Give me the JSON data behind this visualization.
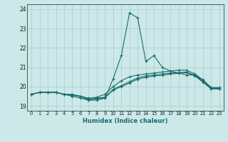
{
  "title": "",
  "xlabel": "Humidex (Indice chaleur)",
  "ylabel": "",
  "xlim": [
    -0.5,
    23.5
  ],
  "ylim": [
    18.75,
    24.25
  ],
  "yticks": [
    19,
    20,
    21,
    22,
    23,
    24
  ],
  "xticks": [
    0,
    1,
    2,
    3,
    4,
    5,
    6,
    7,
    8,
    9,
    10,
    11,
    12,
    13,
    14,
    15,
    16,
    17,
    18,
    19,
    20,
    21,
    22,
    23
  ],
  "background_color": "#cce8e8",
  "grid_color": "#aacccc",
  "line_color": "#1a6b6b",
  "curve1_x": [
    0,
    1,
    2,
    3,
    4,
    5,
    6,
    7,
    8,
    9,
    10,
    11,
    12,
    13,
    14,
    15,
    16,
    17,
    18,
    19,
    20,
    21,
    22,
    23
  ],
  "curve1_y": [
    19.6,
    19.7,
    19.7,
    19.7,
    19.6,
    19.5,
    19.4,
    19.3,
    19.3,
    19.4,
    20.4,
    21.6,
    23.8,
    23.55,
    21.3,
    21.6,
    21.0,
    20.8,
    20.7,
    20.6,
    20.6,
    20.3,
    19.9,
    19.9
  ],
  "curve2_x": [
    0,
    1,
    2,
    3,
    4,
    5,
    6,
    7,
    8,
    9,
    10,
    11,
    12,
    13,
    14,
    15,
    16,
    17,
    18,
    19,
    20,
    21,
    22,
    23
  ],
  "curve2_y": [
    19.6,
    19.7,
    19.7,
    19.7,
    19.6,
    19.6,
    19.5,
    19.4,
    19.45,
    19.6,
    20.0,
    20.3,
    20.5,
    20.6,
    20.65,
    20.7,
    20.75,
    20.8,
    20.85,
    20.85,
    20.65,
    20.35,
    19.95,
    19.95
  ],
  "curve3_x": [
    0,
    1,
    2,
    3,
    4,
    5,
    6,
    7,
    8,
    9,
    10,
    11,
    12,
    13,
    14,
    15,
    16,
    17,
    18,
    19,
    20,
    21,
    22,
    23
  ],
  "curve3_y": [
    19.6,
    19.7,
    19.7,
    19.7,
    19.6,
    19.55,
    19.5,
    19.35,
    19.4,
    19.45,
    19.85,
    20.05,
    20.25,
    20.45,
    20.55,
    20.6,
    20.65,
    20.7,
    20.72,
    20.75,
    20.58,
    20.28,
    19.9,
    19.9
  ],
  "curve4_x": [
    0,
    1,
    2,
    3,
    4,
    5,
    6,
    7,
    8,
    9,
    10,
    11,
    12,
    13,
    14,
    15,
    16,
    17,
    18,
    19,
    20,
    21,
    22,
    23
  ],
  "curve4_y": [
    19.6,
    19.7,
    19.7,
    19.7,
    19.6,
    19.55,
    19.5,
    19.3,
    19.38,
    19.42,
    19.82,
    20.0,
    20.18,
    20.38,
    20.48,
    20.55,
    20.58,
    20.65,
    20.68,
    20.72,
    20.55,
    20.22,
    19.88,
    19.88
  ]
}
